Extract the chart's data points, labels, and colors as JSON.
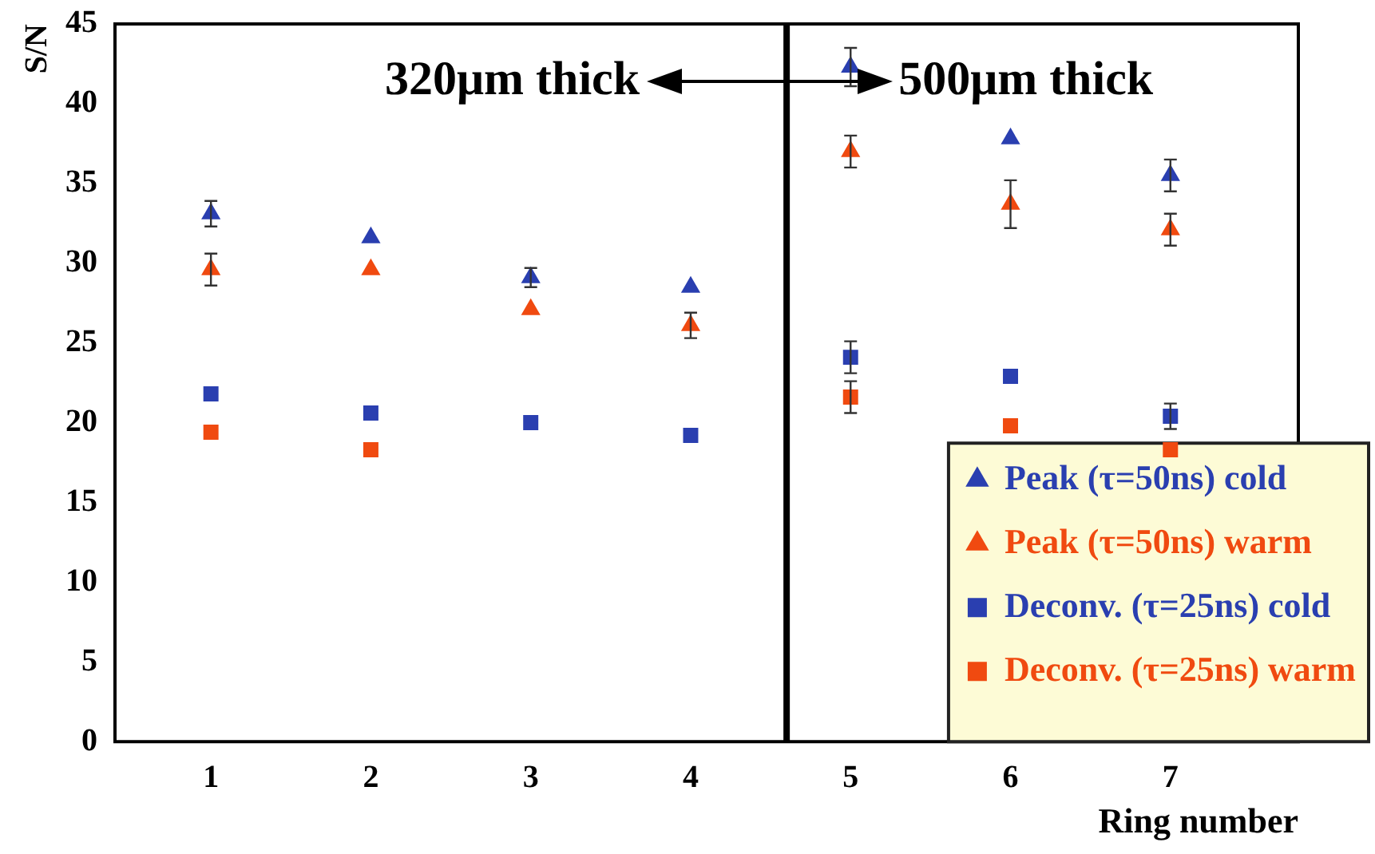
{
  "chart_data": {
    "type": "scatter",
    "xlabel": "Ring number",
    "ylabel": "S/N",
    "x": [
      1,
      2,
      3,
      4,
      5,
      6,
      7
    ],
    "xlim": [
      0.4,
      7.8
    ],
    "xticks": [
      1,
      2,
      3,
      4,
      5,
      6,
      7
    ],
    "ylim": [
      0,
      45
    ],
    "yticks": [
      0,
      5,
      10,
      15,
      20,
      25,
      30,
      35,
      40,
      45
    ],
    "grid": false,
    "legend": "bottom right",
    "series": [
      {
        "name": "Peak (τ=50ns) cold",
        "color": "#2a3fb0",
        "marker": "triangle",
        "values": [
          33.1,
          31.6,
          29.1,
          28.5,
          42.3,
          37.8,
          35.5
        ],
        "errors": [
          0.8,
          null,
          0.6,
          null,
          1.2,
          null,
          1
        ]
      },
      {
        "name": "Peak (τ=50ns) warm",
        "color": "#f04a10",
        "marker": "triangle",
        "values": [
          29.6,
          29.6,
          27.1,
          26.1,
          37,
          33.7,
          32.1
        ],
        "errors": [
          1,
          null,
          null,
          0.8,
          1,
          1.5,
          1
        ]
      },
      {
        "name": "Deconv. (τ=25ns) cold",
        "color": "#2a3fb0",
        "marker": "square",
        "values": [
          21.8,
          20.6,
          20,
          19.2,
          24.1,
          22.9,
          20.4
        ],
        "errors": [
          null,
          null,
          null,
          null,
          1,
          null,
          0.8
        ]
      },
      {
        "name": "Deconv. (τ=25ns) warm",
        "color": "#f04a10",
        "marker": "square",
        "values": [
          19.4,
          18.3,
          null,
          null,
          21.6,
          19.8,
          18.3
        ],
        "errors": [
          null,
          null,
          null,
          null,
          1,
          null,
          null
        ]
      }
    ],
    "ref_lines": [
      {
        "axis": "x",
        "value": 4.6,
        "color": "#000000"
      }
    ],
    "annotations": [
      "320μm thick",
      "500μm thick"
    ]
  }
}
